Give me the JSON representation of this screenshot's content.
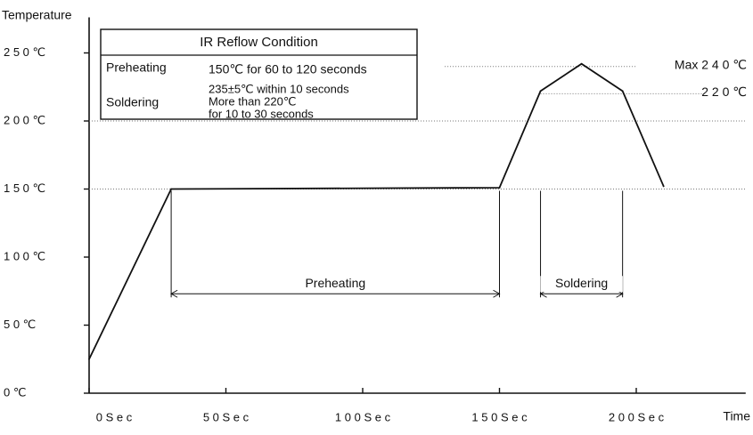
{
  "chart_data": {
    "type": "line",
    "xlabel": "Time",
    "ylabel": "Temperature",
    "xlim": [
      -1,
      240
    ],
    "ylim": [
      0,
      250
    ],
    "x_ticks": [
      {
        "value": 0,
        "label": "0 S e c"
      },
      {
        "value": 50,
        "label": "5 0 S e c"
      },
      {
        "value": 100,
        "label": "1 0 0 S e c"
      },
      {
        "value": 150,
        "label": "1 5 0 S e c"
      },
      {
        "value": 200,
        "label": "2 0 0 S e c"
      }
    ],
    "y_ticks": [
      {
        "value": 0,
        "label": "0 ℃"
      },
      {
        "value": 50,
        "label": "5 0 ℃"
      },
      {
        "value": 100,
        "label": "1 0 0 ℃"
      },
      {
        "value": 150,
        "label": "1 5 0 ℃"
      },
      {
        "value": 200,
        "label": "2 0 0 ℃"
      },
      {
        "value": 250,
        "label": "2 5 0 ℃"
      }
    ],
    "series": [
      {
        "points": [
          {
            "x": 0,
            "y": 25
          },
          {
            "x": 30,
            "y": 150
          },
          {
            "x": 150,
            "y": 151
          },
          {
            "x": 165,
            "y": 222
          },
          {
            "x": 180,
            "y": 242
          },
          {
            "x": 195,
            "y": 222
          },
          {
            "x": 210,
            "y": 152
          }
        ]
      }
    ],
    "reference_lines": [
      {
        "y": 200,
        "style": "dotted",
        "label": ""
      },
      {
        "y": 150,
        "style": "dotted",
        "label": ""
      },
      {
        "y": 240,
        "style": "dotted",
        "label": "Max 2 4 0 ℃",
        "x_start": 130,
        "x_end": 200
      },
      {
        "y": 220,
        "style": "dotted",
        "label": "2 2 0 ℃",
        "x_start": 165,
        "x_end": 225
      }
    ],
    "ranges": [
      {
        "label": "Preheating",
        "x_start": 30,
        "x_end": 150,
        "y": 75
      },
      {
        "label": "Soldering",
        "x_start": 165,
        "x_end": 195,
        "y": 75
      }
    ],
    "table": {
      "title": "IR Reflow Condition",
      "rows": [
        {
          "label": "Preheating",
          "lines": [
            "150℃ for 60 to 120 seconds"
          ]
        },
        {
          "label": "Soldering",
          "lines": [
            "235±5℃ within 10 seconds",
            "More than 220℃",
            "for 10 to 30 seconds"
          ]
        }
      ]
    },
    "grid": false
  }
}
